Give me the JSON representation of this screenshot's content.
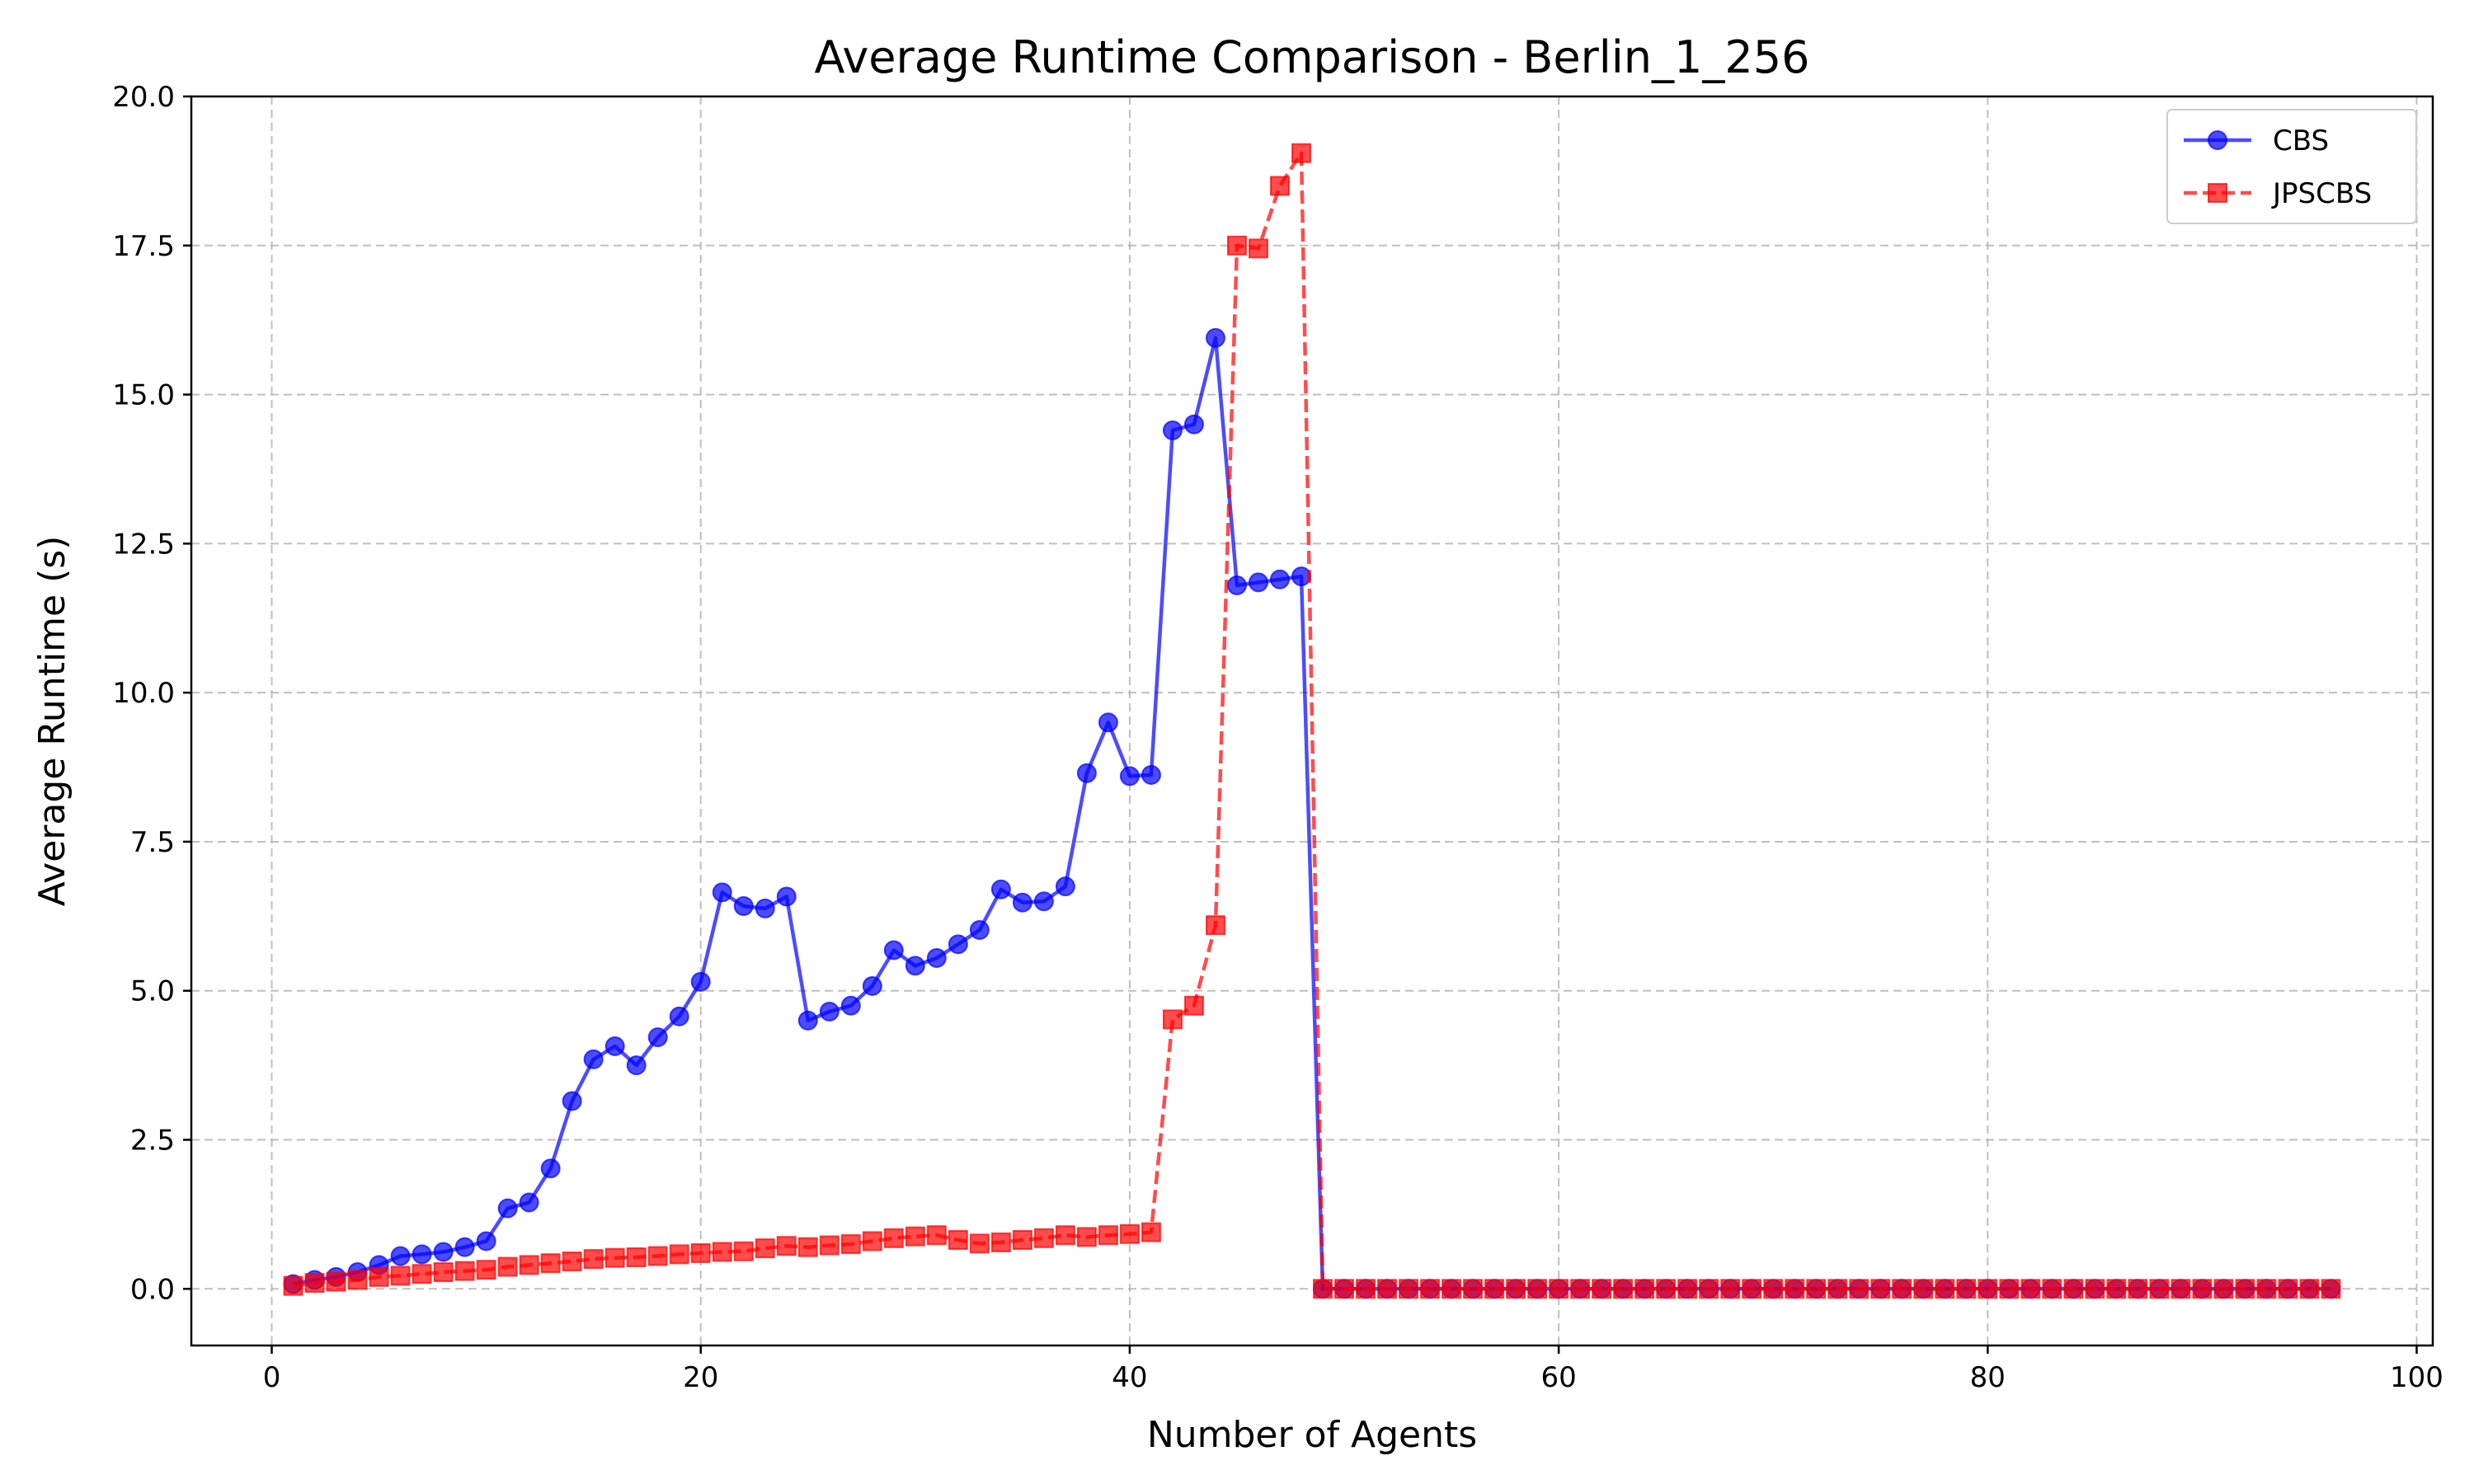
{
  "chart_data": {
    "type": "line",
    "title": "Average Runtime Comparison - Berlin_1_256",
    "xlabel": "Number of Agents",
    "ylabel": "Average Runtime (s)",
    "xlim": [
      -3.75,
      100.75
    ],
    "ylim": [
      -0.95,
      20.0
    ],
    "xticks": [
      0,
      20,
      40,
      60,
      80,
      100
    ],
    "xtick_labels": [
      "0",
      "20",
      "40",
      "60",
      "80",
      "100"
    ],
    "yticks": [
      0,
      2.5,
      5,
      7.5,
      10,
      12.5,
      15,
      17.5,
      20
    ],
    "ytick_labels": [
      "0.0",
      "2.5",
      "5.0",
      "7.5",
      "10.0",
      "12.5",
      "15.0",
      "17.5",
      "20.0"
    ],
    "grid": true,
    "legend_position": "top-right",
    "x": [
      1,
      2,
      3,
      4,
      5,
      6,
      7,
      8,
      9,
      10,
      11,
      12,
      13,
      14,
      15,
      16,
      17,
      18,
      19,
      20,
      21,
      22,
      23,
      24,
      25,
      26,
      27,
      28,
      29,
      30,
      31,
      32,
      33,
      34,
      35,
      36,
      37,
      38,
      39,
      40,
      41,
      42,
      43,
      44,
      45,
      46,
      47,
      48,
      49,
      50,
      51,
      52,
      53,
      54,
      55,
      56,
      57,
      58,
      59,
      60,
      61,
      62,
      63,
      64,
      65,
      66,
      67,
      68,
      69,
      70,
      71,
      72,
      73,
      74,
      75,
      76,
      77,
      78,
      79,
      80,
      81,
      82,
      83,
      84,
      85,
      86,
      87,
      88,
      89,
      90,
      91,
      92,
      93,
      94,
      95,
      96
    ],
    "series": [
      {
        "name": "CBS",
        "color": "#0000ff",
        "marker": "circle",
        "linestyle": "solid",
        "values": [
          0.08,
          0.15,
          0.2,
          0.28,
          0.4,
          0.55,
          0.58,
          0.62,
          0.7,
          0.8,
          1.35,
          1.45,
          2.02,
          3.15,
          3.85,
          4.07,
          3.75,
          4.22,
          4.57,
          5.15,
          6.65,
          6.42,
          6.38,
          6.58,
          4.5,
          4.65,
          4.75,
          5.08,
          5.68,
          5.42,
          5.55,
          5.78,
          6.02,
          6.7,
          6.48,
          6.5,
          6.75,
          8.65,
          9.5,
          8.6,
          8.62,
          14.4,
          14.5,
          15.95,
          11.8,
          11.85,
          11.9,
          11.95,
          0,
          0,
          0,
          0,
          0,
          0,
          0,
          0,
          0,
          0,
          0,
          0,
          0,
          0,
          0,
          0,
          0,
          0,
          0,
          0,
          0,
          0,
          0,
          0,
          0,
          0,
          0,
          0,
          0,
          0,
          0,
          0,
          0,
          0,
          0,
          0,
          0,
          0,
          0,
          0,
          0,
          0,
          0,
          0,
          0,
          0,
          0,
          0
        ]
      },
      {
        "name": "JPSCBS",
        "color": "#ff0000",
        "marker": "square",
        "linestyle": "dashed",
        "values": [
          0.05,
          0.1,
          0.12,
          0.15,
          0.2,
          0.22,
          0.25,
          0.28,
          0.3,
          0.32,
          0.37,
          0.4,
          0.43,
          0.46,
          0.5,
          0.52,
          0.53,
          0.55,
          0.58,
          0.6,
          0.62,
          0.63,
          0.68,
          0.72,
          0.7,
          0.73,
          0.75,
          0.8,
          0.85,
          0.88,
          0.9,
          0.82,
          0.76,
          0.78,
          0.82,
          0.85,
          0.9,
          0.87,
          0.9,
          0.92,
          0.95,
          4.52,
          4.75,
          6.1,
          17.5,
          17.45,
          18.5,
          19.05,
          0,
          0,
          0,
          0,
          0,
          0,
          0,
          0,
          0,
          0,
          0,
          0,
          0,
          0,
          0,
          0,
          0,
          0,
          0,
          0,
          0,
          0,
          0,
          0,
          0,
          0,
          0,
          0,
          0,
          0,
          0,
          0,
          0,
          0,
          0,
          0,
          0,
          0,
          0,
          0,
          0,
          0,
          0,
          0,
          0,
          0,
          0,
          0
        ]
      }
    ]
  }
}
